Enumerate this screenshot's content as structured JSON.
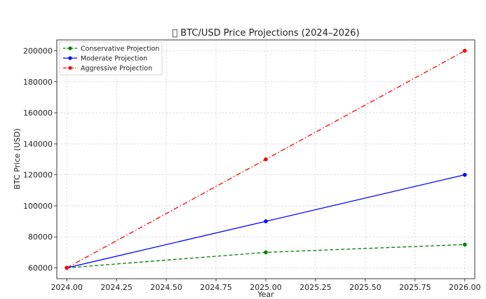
{
  "chart_data": {
    "type": "line",
    "title": "\u0000 BTC/USD Price Projections (2024–2026)",
    "xlabel": "Year",
    "ylabel": "BTC Price (USD)",
    "x": [
      2024,
      2025,
      2026
    ],
    "xlim": [
      2023.95,
      2026.05
    ],
    "ylim": [
      53000,
      207000
    ],
    "xticks": [
      2024.0,
      2024.25,
      2024.5,
      2024.75,
      2025.0,
      2025.25,
      2025.5,
      2025.75,
      2026.0
    ],
    "xtick_labels": [
      "2024.00",
      "2024.25",
      "2024.50",
      "2024.75",
      "2025.00",
      "2025.25",
      "2025.50",
      "2025.75",
      "2026.00"
    ],
    "yticks": [
      60000,
      80000,
      100000,
      120000,
      140000,
      160000,
      180000,
      200000
    ],
    "ytick_labels": [
      "60000",
      "80000",
      "100000",
      "120000",
      "140000",
      "160000",
      "180000",
      "200000"
    ],
    "grid": true,
    "legend_position": "top-left",
    "series": [
      {
        "name": "Conservative Projection",
        "values": [
          60000,
          70000,
          75000
        ],
        "color": "#008000",
        "dash": "dashed"
      },
      {
        "name": "Moderate Projection",
        "values": [
          60000,
          90000,
          120000
        ],
        "color": "#0000ff",
        "dash": "solid"
      },
      {
        "name": "Aggressive Projection",
        "values": [
          60000,
          130000,
          200000
        ],
        "color": "#ff0000",
        "dash": "dashdot"
      }
    ]
  }
}
